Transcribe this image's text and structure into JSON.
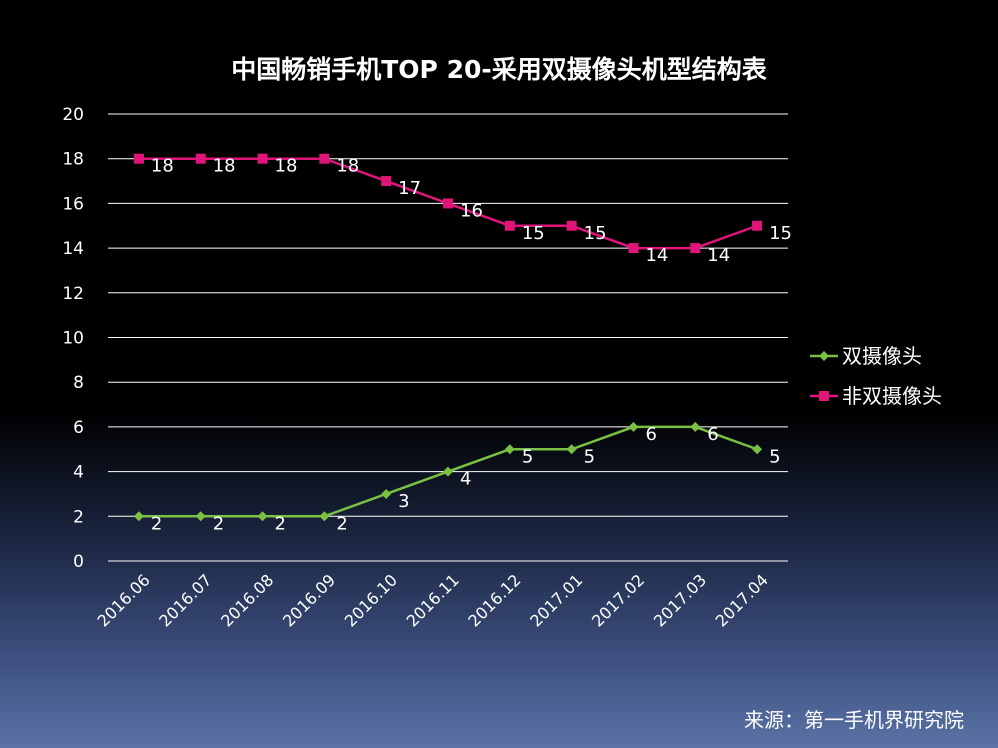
{
  "chart_data": {
    "type": "line",
    "title": "中国畅销手机TOP 20-采用双摄像头机型结构表",
    "categories": [
      "2016.06",
      "2016.07",
      "2016.08",
      "2016.09",
      "2016.10",
      "2016.11",
      "2016.12",
      "2017.01",
      "2017.02",
      "2017.03",
      "2017.04"
    ],
    "series": [
      {
        "name": "双摄像头",
        "color": "#7ac143",
        "marker": "diamond",
        "values": [
          2,
          2,
          2,
          2,
          3,
          4,
          5,
          5,
          6,
          6,
          5
        ]
      },
      {
        "name": "非双摄像头",
        "color": "#e0157a",
        "marker": "square",
        "values": [
          18,
          18,
          18,
          18,
          17,
          16,
          15,
          15,
          14,
          14,
          15
        ]
      }
    ],
    "ylim": [
      0,
      20
    ],
    "yticks": [
      0,
      2,
      4,
      6,
      8,
      10,
      12,
      14,
      16,
      18,
      20
    ],
    "grid": true,
    "legend": "right",
    "xlabel": "",
    "ylabel": ""
  },
  "source": "来源：第一手机界研究院"
}
